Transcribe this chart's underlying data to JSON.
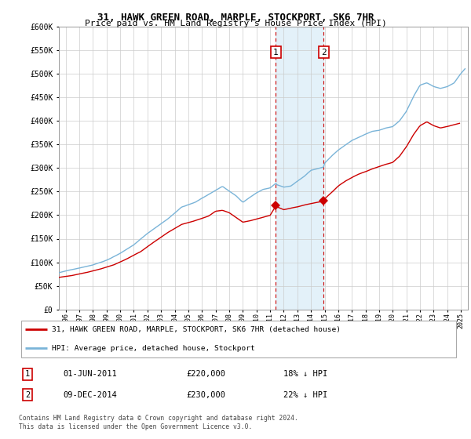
{
  "title": "31, HAWK GREEN ROAD, MARPLE, STOCKPORT, SK6 7HR",
  "subtitle": "Price paid vs. HM Land Registry's House Price Index (HPI)",
  "legend_label_red": "31, HAWK GREEN ROAD, MARPLE, STOCKPORT, SK6 7HR (detached house)",
  "legend_label_blue": "HPI: Average price, detached house, Stockport",
  "footer": "Contains HM Land Registry data © Crown copyright and database right 2024.\nThis data is licensed under the Open Government Licence v3.0.",
  "ann1_label": "1",
  "ann1_date_str": "01-JUN-2011",
  "ann1_price_str": "£220,000",
  "ann1_pct_str": "18% ↓ HPI",
  "ann2_label": "2",
  "ann2_date_str": "09-DEC-2014",
  "ann2_price_str": "£230,000",
  "ann2_pct_str": "22% ↓ HPI",
  "ann1_x": 2011.42,
  "ann1_y": 220000,
  "ann2_x": 2014.94,
  "ann2_y": 230000,
  "hpi_color": "#7ab4d8",
  "price_color": "#cc0000",
  "shading_color": "#ddeef8",
  "ylim": [
    0,
    600000
  ],
  "yticks": [
    0,
    50000,
    100000,
    150000,
    200000,
    250000,
    300000,
    350000,
    400000,
    450000,
    500000,
    550000,
    600000
  ],
  "xlim_start": 1995.5,
  "xlim_end": 2025.5
}
